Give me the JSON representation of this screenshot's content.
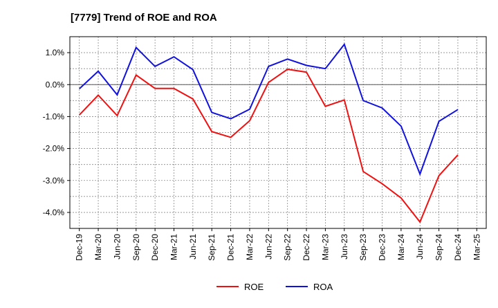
{
  "chart_data": {
    "type": "line",
    "title": "[7779]  Trend of ROE and ROA",
    "xlabel": "",
    "ylabel": "",
    "x": [
      "Dec-19",
      "Mar-20",
      "Jun-20",
      "Sep-20",
      "Dec-20",
      "Mar-21",
      "Jun-21",
      "Sep-21",
      "Dec-21",
      "Mar-22",
      "Jun-22",
      "Sep-22",
      "Dec-22",
      "Mar-23",
      "Jun-23",
      "Sep-23",
      "Dec-23",
      "Mar-24",
      "Jun-24",
      "Sep-24",
      "Dec-24",
      "Mar-25"
    ],
    "x_tick_labels": [
      "Dec-19",
      "Mar-20",
      "Jun-20",
      "Sep-20",
      "Dec-20",
      "Mar-21",
      "Jun-21",
      "Sep-21",
      "Dec-21",
      "Mar-22",
      "Jun-22",
      "Sep-22",
      "Dec-22",
      "Mar-23",
      "Jun-23",
      "Sep-23",
      "Dec-23",
      "Mar-24",
      "Jun-24",
      "Sep-24",
      "Dec-24",
      "Mar-25"
    ],
    "y_ticks": [
      1.0,
      0.0,
      -1.0,
      -2.0,
      -3.0,
      -4.0
    ],
    "y_tick_labels": [
      "1.0%",
      "0.0%",
      "-1.0%",
      "-2.0%",
      "-3.0%",
      "-4.0%"
    ],
    "ylim": [
      -4.5,
      1.5
    ],
    "grid": true,
    "zero_line": true,
    "legend_position": "bottom",
    "series": [
      {
        "name": "ROE",
        "color": "#ee1111",
        "values": [
          -0.95,
          -0.33,
          -0.97,
          0.3,
          -0.12,
          -0.12,
          -0.45,
          -1.47,
          -1.65,
          -1.13,
          0.07,
          0.48,
          0.39,
          -0.68,
          -0.48,
          -2.72,
          -3.1,
          -3.55,
          -4.3,
          -2.85,
          -2.2,
          null
        ]
      },
      {
        "name": "ROA",
        "color": "#1111dd",
        "values": [
          -0.13,
          0.42,
          -0.32,
          1.16,
          0.57,
          0.87,
          0.47,
          -0.87,
          -1.07,
          -0.77,
          0.57,
          0.8,
          0.6,
          0.5,
          1.26,
          -0.5,
          -0.73,
          -1.3,
          -2.8,
          -1.15,
          -0.78,
          null
        ]
      }
    ]
  }
}
